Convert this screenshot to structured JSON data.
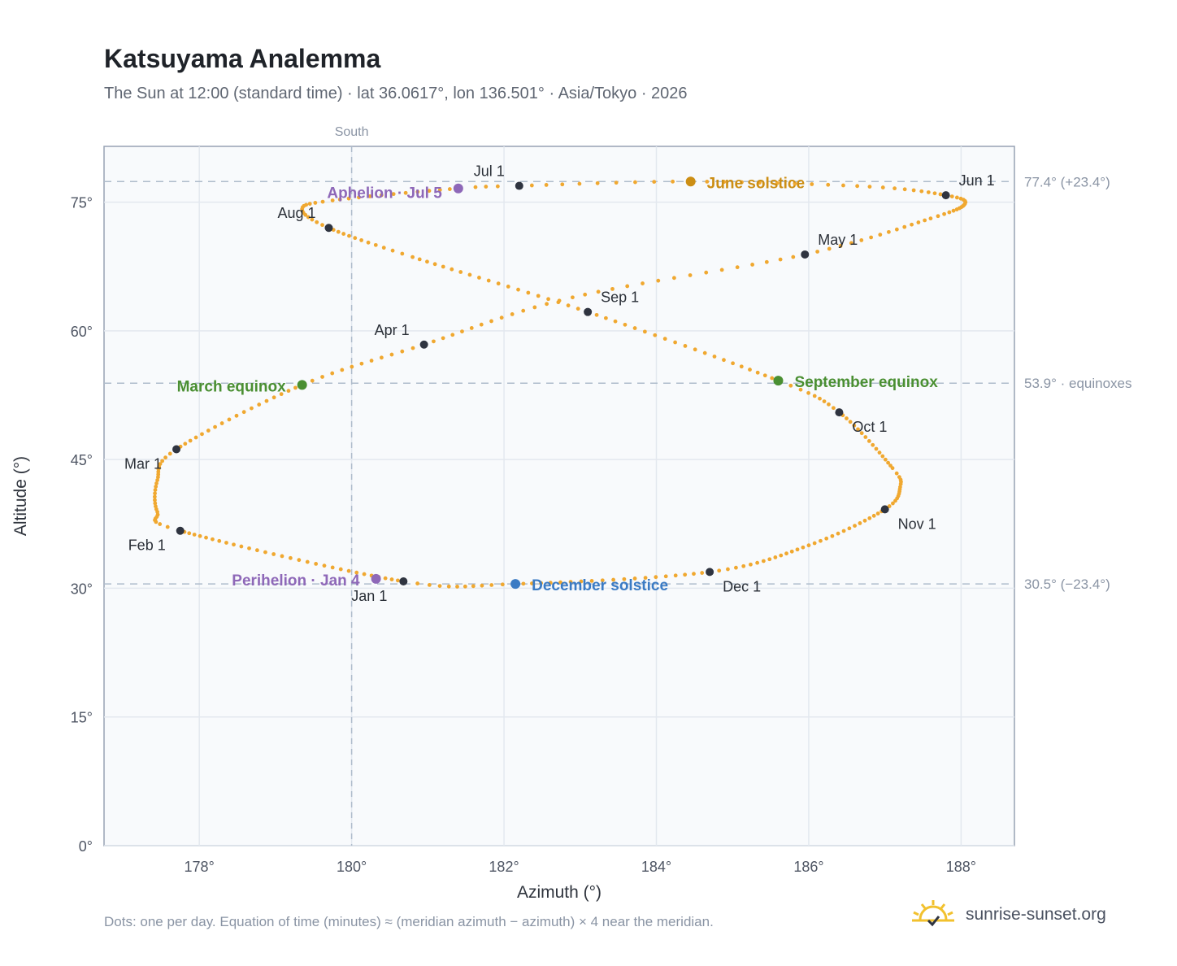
{
  "title": "Katsuyama Analemma",
  "subtitle": "The Sun at 12:00 (standard time) · lat 36.0617°, lon 136.501° · Asia/Tokyo · 2026",
  "footnote": "Dots: one per day. Equation of time (minutes) ≈ (meridian azimuth − azimuth) × 4 near the meridian.",
  "brand": {
    "text": "sunrise-sunset.org"
  },
  "chart_data": {
    "type": "scatter",
    "xlabel": "Azimuth (°)",
    "ylabel": "Altitude (°)",
    "xlim": [
      176.75,
      188.7
    ],
    "ylim": [
      0,
      81.5
    ],
    "x_ticks": [
      178,
      180,
      182,
      184,
      186,
      188
    ],
    "x_tick_labels": [
      "178°",
      "180°",
      "182°",
      "184°",
      "186°",
      "188°"
    ],
    "y_ticks": [
      0,
      15,
      30,
      45,
      60,
      75
    ],
    "y_tick_labels": [
      "0°",
      "15°",
      "30°",
      "45°",
      "60°",
      "75°"
    ],
    "grid": true,
    "south": {
      "x": 180,
      "label": "South"
    },
    "reference_lines": [
      {
        "y": 77.4,
        "label": "77.4° (+23.4°)"
      },
      {
        "y": 53.9,
        "label": "53.9° · equinoxes"
      },
      {
        "y": 30.5,
        "label": "30.5° (−23.4°)"
      }
    ],
    "analemma_color": "#f0a830",
    "anchors": [
      {
        "day": 1,
        "az": 180.68,
        "alt": 30.8
      },
      {
        "day": 32,
        "az": 177.75,
        "alt": 36.7
      },
      {
        "day": 40,
        "az": 177.45,
        "alt": 38.9
      },
      {
        "day": 50,
        "az": 177.45,
        "alt": 42.6
      },
      {
        "day": 60,
        "az": 177.7,
        "alt": 46.2
      },
      {
        "day": 79,
        "az": 179.35,
        "alt": 53.7
      },
      {
        "day": 91,
        "az": 180.95,
        "alt": 58.4
      },
      {
        "day": 105,
        "az": 182.9,
        "alt": 63.9
      },
      {
        "day": 121,
        "az": 185.95,
        "alt": 68.9
      },
      {
        "day": 135,
        "az": 187.6,
        "alt": 73.1
      },
      {
        "day": 145,
        "az": 188.05,
        "alt": 74.8
      },
      {
        "day": 152,
        "az": 187.8,
        "alt": 75.8
      },
      {
        "day": 161,
        "az": 186.8,
        "alt": 76.8
      },
      {
        "day": 172,
        "az": 184.45,
        "alt": 77.4
      },
      {
        "day": 182,
        "az": 182.2,
        "alt": 76.9
      },
      {
        "day": 186,
        "az": 181.4,
        "alt": 76.6
      },
      {
        "day": 198,
        "az": 179.75,
        "alt": 75.2
      },
      {
        "day": 205,
        "az": 179.35,
        "alt": 74.2
      },
      {
        "day": 213,
        "az": 179.7,
        "alt": 72.0
      },
      {
        "day": 225,
        "az": 180.8,
        "alt": 68.6
      },
      {
        "day": 244,
        "az": 183.1,
        "alt": 62.2
      },
      {
        "day": 265,
        "az": 185.6,
        "alt": 54.2
      },
      {
        "day": 274,
        "az": 186.4,
        "alt": 50.5
      },
      {
        "day": 290,
        "az": 187.1,
        "alt": 44.0
      },
      {
        "day": 296,
        "az": 187.2,
        "alt": 41.8
      },
      {
        "day": 305,
        "az": 187.0,
        "alt": 39.2
      },
      {
        "day": 320,
        "az": 186.0,
        "alt": 35.0
      },
      {
        "day": 335,
        "az": 184.7,
        "alt": 31.9
      },
      {
        "day": 355,
        "az": 182.15,
        "alt": 30.5
      },
      {
        "day": 366,
        "az": 180.68,
        "alt": 30.8
      }
    ],
    "month_markers": [
      {
        "label": "Jan 1",
        "az": 180.68,
        "alt": 30.8,
        "anchor": "middle",
        "dx": -42,
        "dy": 24
      },
      {
        "label": "Feb 1",
        "az": 177.75,
        "alt": 36.7,
        "anchor": "end",
        "dx": -18,
        "dy": 24
      },
      {
        "label": "Mar 1",
        "az": 177.7,
        "alt": 46.2,
        "anchor": "end",
        "dx": -18,
        "dy": 24
      },
      {
        "label": "Apr 1",
        "az": 180.95,
        "alt": 58.4,
        "anchor": "end",
        "dx": -18,
        "dy": -12
      },
      {
        "label": "May 1",
        "az": 185.95,
        "alt": 68.9,
        "anchor": "start",
        "dx": 16,
        "dy": -12
      },
      {
        "label": "Jun 1",
        "az": 187.8,
        "alt": 75.8,
        "anchor": "start",
        "dx": 16,
        "dy": -12
      },
      {
        "label": "Jul 1",
        "az": 182.2,
        "alt": 76.9,
        "anchor": "end",
        "dx": -18,
        "dy": -12
      },
      {
        "label": "Aug 1",
        "az": 179.7,
        "alt": 72.0,
        "anchor": "end",
        "dx": -16,
        "dy": -12
      },
      {
        "label": "Sep 1",
        "az": 183.1,
        "alt": 62.2,
        "anchor": "start",
        "dx": 16,
        "dy": -12
      },
      {
        "label": "Oct 1",
        "az": 186.4,
        "alt": 50.5,
        "anchor": "start",
        "dx": 16,
        "dy": 24
      },
      {
        "label": "Nov 1",
        "az": 187.0,
        "alt": 39.2,
        "anchor": "start",
        "dx": 16,
        "dy": 24
      },
      {
        "label": "Dec 1",
        "az": 184.7,
        "alt": 31.9,
        "anchor": "start",
        "dx": 16,
        "dy": 24
      }
    ],
    "events": [
      {
        "label": "June solstice",
        "az": 184.45,
        "alt": 77.4,
        "color": "#cc8e14",
        "anchor": "start",
        "dx": 20,
        "dy": 8
      },
      {
        "label": "Aphelion · Jul 5",
        "az": 181.4,
        "alt": 76.6,
        "color": "#8e68b8",
        "anchor": "end",
        "dx": -20,
        "dy": 12
      },
      {
        "label": "March equinox",
        "az": 179.35,
        "alt": 53.7,
        "color": "#4a8f32",
        "anchor": "end",
        "dx": -20,
        "dy": 8
      },
      {
        "label": "September equinox",
        "az": 185.6,
        "alt": 54.2,
        "color": "#4a8f32",
        "anchor": "start",
        "dx": 20,
        "dy": 8
      },
      {
        "label": "December solstice",
        "az": 182.15,
        "alt": 30.5,
        "color": "#3b7bc4",
        "anchor": "start",
        "dx": 20,
        "dy": 8
      },
      {
        "label": "Perihelion · Jan 4",
        "az": 180.32,
        "alt": 31.1,
        "color": "#8e68b8",
        "anchor": "end",
        "dx": -20,
        "dy": 8
      }
    ]
  }
}
